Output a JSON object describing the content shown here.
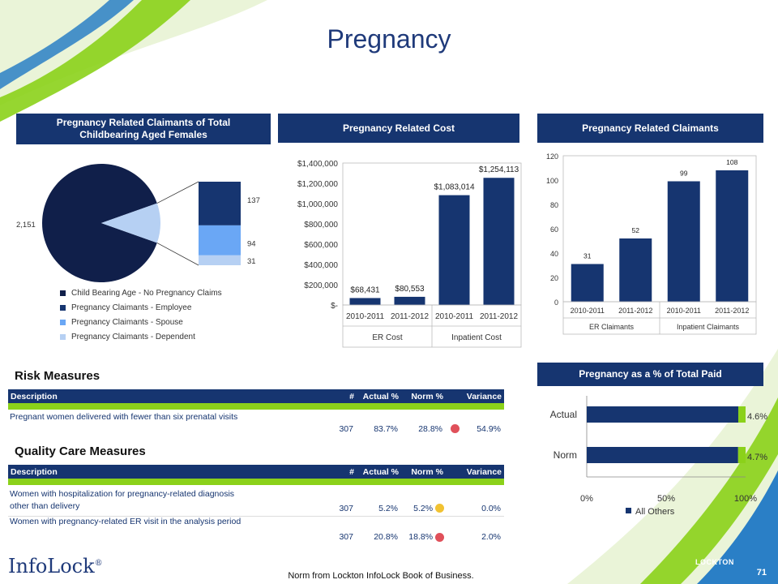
{
  "page": {
    "title": "Pregnancy",
    "footer_note": "Norm from Lockton InfoLock Book of Business.",
    "page_number": "71",
    "brand": "InfoLock",
    "brand_mark": "®",
    "partner_logo": "LOCKTON"
  },
  "colors": {
    "navy": "#163570",
    "green": "#8bd11a",
    "blue_mid": "#6aa7f5",
    "blue_light": "#b6d0f3",
    "pie_dark": "#101f4a",
    "red_dot": "#e0505a",
    "yellow_dot": "#f1c232"
  },
  "panels": {
    "claimants_share": "Pregnancy Related Claimants of Total Childbearing Aged Females",
    "cost": "Pregnancy Related Cost",
    "claimants": "Pregnancy Related Claimants",
    "pct_paid": "Pregnancy as a % of Total Paid"
  },
  "chart_data": [
    {
      "type": "pie",
      "slices": [
        {
          "name": "Child Bearing Age - No Pregnancy Claims",
          "value": 2151,
          "label": "2,151"
        },
        {
          "name": "Pregnancy Claimants - Employee",
          "value": 137,
          "label": "137"
        },
        {
          "name": "Pregnancy Claimants - Spouse",
          "value": 94,
          "label": "94"
        },
        {
          "name": "Pregnancy Claimants - Dependent",
          "value": 31,
          "label": "31"
        }
      ],
      "legend": [
        "Child Bearing Age - No Pregnancy Claims",
        "Pregnancy Claimants - Employee",
        "Pregnancy Claimants - Spouse",
        "Pregnancy Claimants - Dependent"
      ],
      "legend_position": "bottom"
    },
    {
      "type": "bar",
      "categories": [
        "2010-2011",
        "2011-2012",
        "2010-2011",
        "2011-2012"
      ],
      "groups": [
        "ER Cost",
        "Inpatient Cost"
      ],
      "values": [
        68431,
        80553,
        1083014,
        1254113
      ],
      "data_labels": [
        "$68,431",
        "$80,553",
        "$1,083,014",
        "$1,254,113"
      ],
      "yticks": [
        "$-",
        "$200,000",
        "$400,000",
        "$600,000",
        "$800,000",
        "$1,000,000",
        "$1,200,000",
        "$1,400,000"
      ],
      "ylim": [
        0,
        1400000
      ]
    },
    {
      "type": "bar",
      "categories": [
        "2010-2011",
        "2011-2012",
        "2010-2011",
        "2011-2012"
      ],
      "groups": [
        "ER Claimants",
        "Inpatient Claimants"
      ],
      "values": [
        31,
        52,
        99,
        108
      ],
      "data_labels": [
        "31",
        "52",
        "99",
        "108"
      ],
      "yticks": [
        "0",
        "20",
        "40",
        "60",
        "80",
        "100",
        "120"
      ],
      "ylim": [
        0,
        120
      ]
    },
    {
      "type": "bar",
      "orientation": "horizontal",
      "stacked": true,
      "categories": [
        "Actual",
        "Norm"
      ],
      "series": [
        {
          "name": "All Others",
          "values": [
            95.4,
            95.3
          ]
        },
        {
          "values": [
            4.6,
            4.7
          ]
        }
      ],
      "data_labels": [
        "4.6%",
        "4.7%"
      ],
      "xticks": [
        "0%",
        "50%",
        "100%"
      ],
      "xlim": [
        0,
        100
      ],
      "legend": [
        "All Others"
      ],
      "legend_position": "bottom"
    }
  ],
  "risk": {
    "title": "Risk Measures",
    "headers": {
      "description": "Description",
      "actual_n": "#",
      "actual_pct": "Actual %",
      "norm": "Norm %",
      "variance": "Variance"
    },
    "rows": [
      {
        "description": "Pregnant women delivered with fewer than six prenatal visits",
        "n": "307",
        "actual": "83.7%",
        "norm": "28.8%",
        "status": "red",
        "variance": "54.9%"
      }
    ]
  },
  "quality": {
    "title": "Quality Care Measures",
    "headers": {
      "description": "Description",
      "actual_n": "#",
      "actual_pct": "Actual %",
      "norm": "Norm %",
      "variance": "Variance"
    },
    "rows": [
      {
        "description_line1": "Women with hospitalization for pregnancy-related diagnosis",
        "description_line2": "other than delivery",
        "n": "307",
        "actual": "5.2%",
        "norm": "5.2%",
        "status": "yellow",
        "variance": "0.0%"
      },
      {
        "description_line1": "Women with pregnancy-related ER visit in the analysis period",
        "description_line2": "",
        "n": "307",
        "actual": "20.8%",
        "norm": "18.8%",
        "status": "red",
        "variance": "2.0%"
      }
    ]
  }
}
